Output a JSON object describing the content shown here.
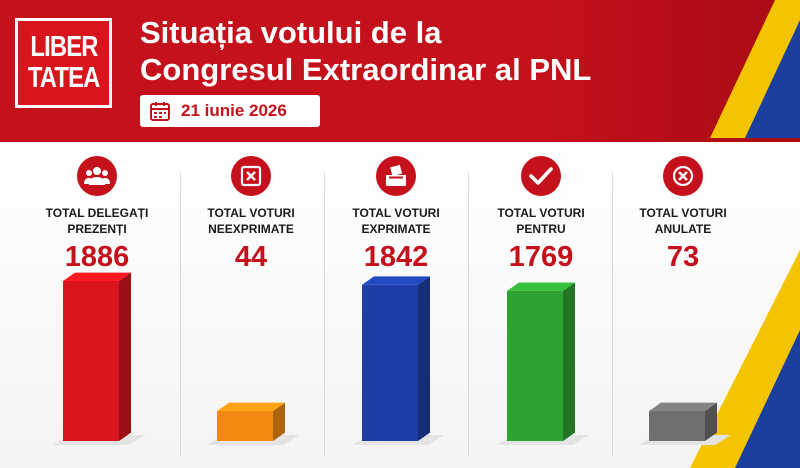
{
  "logo": {
    "line1": "LIBER",
    "line2": "TATEA"
  },
  "header": {
    "title_line1": "Situația votului de la",
    "title_line2": "Congresul Extraordinar al PNL",
    "date": "21 iunie 2026"
  },
  "colors": {
    "brand_red": "#c4111b",
    "flag_yellow": "#f5c400",
    "flag_blue": "#1a3f9e"
  },
  "chart_data": {
    "type": "bar",
    "categories": [
      "TOTAL DELEGAȚI\nPREZENȚI",
      "TOTAL VOTURI\nNEEXPRIMATE",
      "TOTAL VOTURI\nEXPRIMATE",
      "TOTAL VOTURI\nPENTRU",
      "TOTAL VOTURI\nANULATE"
    ],
    "values": [
      1886,
      44,
      1842,
      1769,
      73
    ],
    "value_labels": [
      "1886",
      "44",
      "1842",
      "1769",
      "73"
    ],
    "icons": [
      "group-icon",
      "ballot-x-icon",
      "ballot-box-icon",
      "check-icon",
      "circle-x-icon"
    ],
    "bar_colors": [
      "#d8141d",
      "#f28a12",
      "#1e3fa6",
      "#2ea334",
      "#6f6f6f"
    ],
    "title": "",
    "xlabel": "",
    "ylabel": ""
  }
}
